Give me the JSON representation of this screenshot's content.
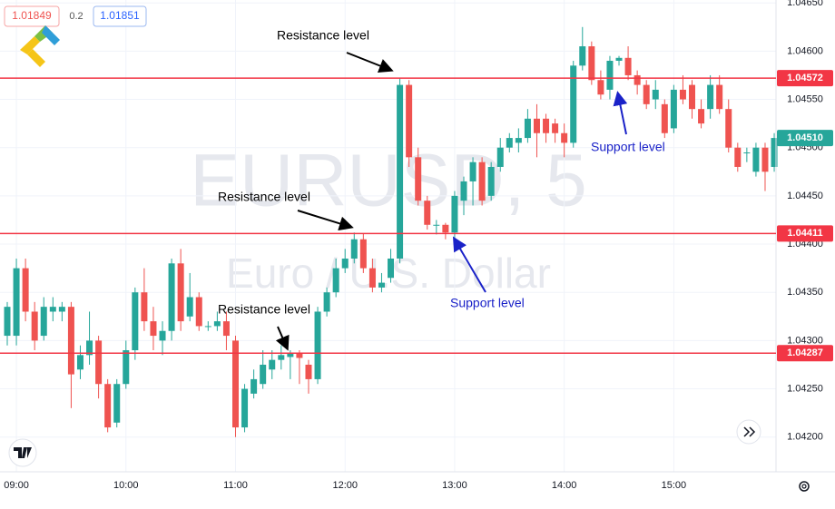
{
  "chart_data": {
    "type": "candlestick",
    "title": "EURUSD, 5",
    "subtitle": "Euro / U.S. Dollar",
    "categories": [
      null,
      "09:00",
      null,
      null,
      null,
      null,
      null,
      null,
      null,
      null,
      null,
      null,
      null,
      "10:00",
      null,
      null,
      null,
      null,
      null,
      null,
      null,
      null,
      null,
      null,
      null,
      "11:00",
      null,
      null,
      null,
      null,
      null,
      null,
      null,
      null,
      null,
      null,
      null,
      "12:00",
      null,
      null,
      null,
      null,
      null,
      null,
      null,
      null,
      null,
      null,
      null,
      "13:00",
      null,
      null,
      null,
      null,
      null,
      null,
      null,
      null,
      null,
      null,
      null,
      "14:00",
      null,
      null,
      null,
      null,
      null,
      null,
      null,
      null,
      null,
      null,
      null,
      "15:00",
      null,
      null,
      null,
      null,
      null,
      null,
      null,
      null,
      null,
      null,
      null
    ],
    "open": [
      1.04305,
      1.04305,
      1.04375,
      1.0433,
      1.04305,
      1.0433,
      1.0433,
      1.04335,
      1.0427,
      1.04285,
      1.043,
      1.04255,
      1.04215,
      1.04255,
      1.0429,
      1.0435,
      1.0432,
      1.043,
      1.0431,
      1.0438,
      1.04325,
      1.04345,
      1.04315,
      1.04315,
      1.0432,
      1.043,
      1.0421,
      1.04245,
      1.04255,
      1.0427,
      1.0428,
      1.04283,
      1.04287,
      1.04275,
      1.0426,
      1.0433,
      1.0435,
      1.04375,
      1.04385,
      1.04405,
      1.04375,
      1.04355,
      1.04365,
      1.04385,
      1.04565,
      1.0449,
      1.04445,
      1.0442,
      1.0442,
      1.04412,
      1.04445,
      1.04465,
      1.04485,
      1.0445,
      1.0448,
      1.045,
      1.04505,
      1.0451,
      1.0453,
      1.0453,
      1.04525,
      1.04515,
      1.04505,
      1.04585,
      1.04605,
      1.0457,
      1.0456,
      1.0459,
      1.04593,
      1.04575,
      1.04565,
      1.0455,
      1.04545,
      1.0452,
      1.0456,
      1.04565,
      1.0454,
      1.0454,
      1.04565,
      1.0454,
      1.045,
      1.04495,
      1.04475,
      1.045,
      1.0448
    ],
    "high": [
      1.0434,
      1.04385,
      1.04385,
      1.0434,
      1.04345,
      1.04345,
      1.0434,
      1.0434,
      1.04295,
      1.0433,
      1.04305,
      1.0426,
      1.0426,
      1.043,
      1.04355,
      1.04375,
      1.04335,
      1.0432,
      1.04385,
      1.04395,
      1.0437,
      1.0435,
      1.0432,
      1.0433,
      1.0433,
      1.04305,
      1.04255,
      1.0427,
      1.0429,
      1.0429,
      1.04295,
      1.0429,
      1.0429,
      1.0428,
      1.04335,
      1.04355,
      1.04385,
      1.04395,
      1.04412,
      1.04411,
      1.04385,
      1.0437,
      1.04395,
      1.04572,
      1.0457,
      1.045,
      1.0445,
      1.04425,
      1.04422,
      1.04455,
      1.0447,
      1.0449,
      1.0449,
      1.04485,
      1.0451,
      1.04515,
      1.0452,
      1.0454,
      1.04545,
      1.04535,
      1.0453,
      1.04525,
      1.0459,
      1.04625,
      1.0461,
      1.0458,
      1.04595,
      1.04595,
      1.04605,
      1.0458,
      1.0457,
      1.0457,
      1.0455,
      1.04565,
      1.04575,
      1.0457,
      1.0455,
      1.04575,
      1.04575,
      1.0455,
      1.04505,
      1.045,
      1.04505,
      1.04505,
      1.04515
    ],
    "low": [
      1.04295,
      1.04295,
      1.0432,
      1.0429,
      1.043,
      1.0432,
      1.0432,
      1.0423,
      1.0426,
      1.04275,
      1.0424,
      1.04205,
      1.0421,
      1.0425,
      1.0428,
      1.0431,
      1.0429,
      1.04285,
      1.043,
      1.0431,
      1.0432,
      1.0431,
      1.0431,
      1.0431,
      1.0429,
      1.042,
      1.04205,
      1.0424,
      1.0425,
      1.0426,
      1.0427,
      1.0426,
      1.04255,
      1.04245,
      1.04255,
      1.04325,
      1.04345,
      1.0437,
      1.0438,
      1.0437,
      1.0435,
      1.0435,
      1.0436,
      1.0438,
      1.0448,
      1.0444,
      1.04415,
      1.0441,
      1.04405,
      1.04405,
      1.0443,
      1.0444,
      1.0444,
      1.04445,
      1.04475,
      1.04495,
      1.04495,
      1.04505,
      1.0449,
      1.04505,
      1.04505,
      1.0449,
      1.045,
      1.0458,
      1.04565,
      1.0455,
      1.0455,
      1.04585,
      1.0457,
      1.04555,
      1.0454,
      1.0454,
      1.0451,
      1.04515,
      1.04545,
      1.0453,
      1.0452,
      1.0453,
      1.04535,
      1.04495,
      1.04475,
      1.04485,
      1.0447,
      1.04455,
      1.04475
    ],
    "close": [
      1.04335,
      1.04375,
      1.0433,
      1.043,
      1.04335,
      1.04335,
      1.04335,
      1.04265,
      1.04285,
      1.043,
      1.04255,
      1.0421,
      1.04255,
      1.0429,
      1.0435,
      1.0432,
      1.04305,
      1.0431,
      1.0438,
      1.0432,
      1.04345,
      1.04315,
      1.04315,
      1.0432,
      1.04305,
      1.0421,
      1.0425,
      1.0426,
      1.04275,
      1.0428,
      1.04285,
      1.04287,
      1.04282,
      1.0426,
      1.0433,
      1.0435,
      1.04375,
      1.04385,
      1.04405,
      1.04375,
      1.04355,
      1.0436,
      1.04385,
      1.04565,
      1.0449,
      1.04445,
      1.0442,
      1.0442,
      1.04412,
      1.0445,
      1.04465,
      1.04485,
      1.04445,
      1.0448,
      1.045,
      1.0451,
      1.0451,
      1.0453,
      1.04515,
      1.04515,
      1.04515,
      1.04505,
      1.04585,
      1.04605,
      1.0457,
      1.04555,
      1.0459,
      1.04593,
      1.04575,
      1.04565,
      1.04545,
      1.0456,
      1.04515,
      1.0456,
      1.0455,
      1.0454,
      1.04525,
      1.04565,
      1.0454,
      1.045,
      1.0448,
      1.04495,
      1.045,
      1.04475,
      1.0451
    ],
    "up_color": "#26a69a",
    "down_color": "#ef5350",
    "ylim": [
      1.04164,
      1.04653
    ],
    "yticks": [
      {
        "value": 1.0465,
        "label": "1.04650"
      },
      {
        "value": 1.046,
        "label": "1.04600"
      },
      {
        "value": 1.0455,
        "label": "1.04550"
      },
      {
        "value": 1.045,
        "label": "1.04500"
      },
      {
        "value": 1.0445,
        "label": "1.04450"
      },
      {
        "value": 1.044,
        "label": "1.04400"
      },
      {
        "value": 1.0435,
        "label": "1.04350"
      },
      {
        "value": 1.043,
        "label": "1.04300"
      },
      {
        "value": 1.0425,
        "label": "1.04250"
      },
      {
        "value": 1.042,
        "label": "1.04200"
      }
    ],
    "grid": true,
    "levels": [
      1.04572,
      1.04411,
      1.04287
    ],
    "level_color": "#f23645",
    "last_price": {
      "value": 1.0451,
      "label": "1.04510"
    },
    "annotations": [
      {
        "text": "Resistance level",
        "color": "#000000"
      },
      {
        "text": "Resistance level",
        "color": "#000000"
      },
      {
        "text": "Resistance level",
        "color": "#000000"
      },
      {
        "text": "Support level",
        "color": "#1a22c8"
      },
      {
        "text": "Support level",
        "color": "#1a22c8"
      }
    ]
  },
  "header": {
    "bid": "1.01849",
    "spread": "0.2",
    "ask": "1.01851"
  }
}
